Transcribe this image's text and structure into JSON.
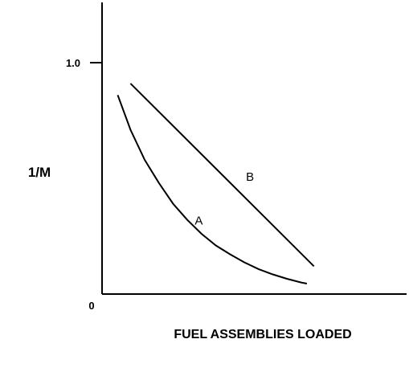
{
  "chart_data": {
    "type": "line",
    "title": "",
    "xlabel": "FUEL ASSEMBLIES LOADED",
    "ylabel": "1/M",
    "xlim": [
      0,
      10
    ],
    "ylim": [
      0,
      1.3
    ],
    "origin_label": "0",
    "y_ticks": [
      {
        "value": 1.0,
        "label": "1.0"
      }
    ],
    "grid": false,
    "series": [
      {
        "name": "A",
        "label_at": {
          "x": 3.4,
          "y": 0.3
        },
        "points": [
          {
            "x": 0.55,
            "y": 0.86
          },
          {
            "x": 1.0,
            "y": 0.71
          },
          {
            "x": 1.5,
            "y": 0.58
          },
          {
            "x": 2.0,
            "y": 0.48
          },
          {
            "x": 2.5,
            "y": 0.39
          },
          {
            "x": 3.0,
            "y": 0.32
          },
          {
            "x": 3.5,
            "y": 0.26
          },
          {
            "x": 4.0,
            "y": 0.21
          },
          {
            "x": 4.5,
            "y": 0.172
          },
          {
            "x": 5.0,
            "y": 0.137
          },
          {
            "x": 5.5,
            "y": 0.108
          },
          {
            "x": 6.0,
            "y": 0.085
          },
          {
            "x": 6.5,
            "y": 0.066
          },
          {
            "x": 7.0,
            "y": 0.05
          },
          {
            "x": 7.2,
            "y": 0.045
          }
        ]
      },
      {
        "name": "B",
        "label_at": {
          "x": 5.2,
          "y": 0.49
        },
        "points": [
          {
            "x": 1.0,
            "y": 0.91
          },
          {
            "x": 7.45,
            "y": 0.12
          }
        ]
      }
    ]
  }
}
